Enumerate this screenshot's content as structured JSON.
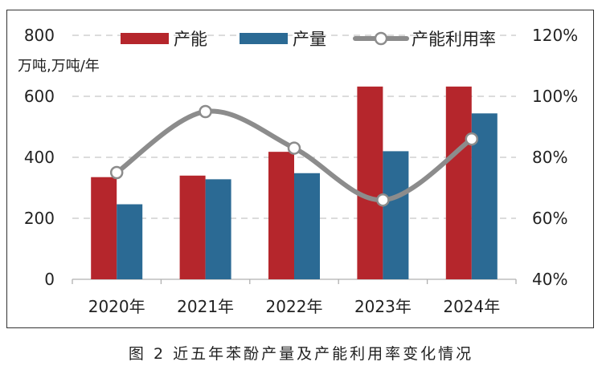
{
  "chart_data": {
    "type": "bar",
    "categories": [
      "2020年",
      "2021年",
      "2022年",
      "2023年",
      "2024年"
    ],
    "series": [
      {
        "name": "产能",
        "type": "bar",
        "axis": "left",
        "color": "#b5262c",
        "values": [
          335,
          340,
          418,
          632,
          632
        ]
      },
      {
        "name": "产量",
        "type": "bar",
        "axis": "left",
        "color": "#2b6a94",
        "values": [
          246,
          328,
          348,
          420,
          544
        ]
      },
      {
        "name": "产能利用率",
        "type": "line",
        "axis": "right",
        "color": "#8c8c8c",
        "values": [
          75,
          95,
          83,
          66,
          86
        ]
      }
    ],
    "ylabel": "万吨,万吨/年",
    "ylim": [
      0,
      800
    ],
    "yticks": [
      "0",
      "200",
      "400",
      "600",
      "800"
    ],
    "y2lim": [
      40,
      120
    ],
    "y2ticks": [
      "40%",
      "60%",
      "80%",
      "100%",
      "120%"
    ],
    "grid": true,
    "legend_position": "top"
  },
  "caption": "图 2  近五年苯酚产量及产能利用率变化情况"
}
